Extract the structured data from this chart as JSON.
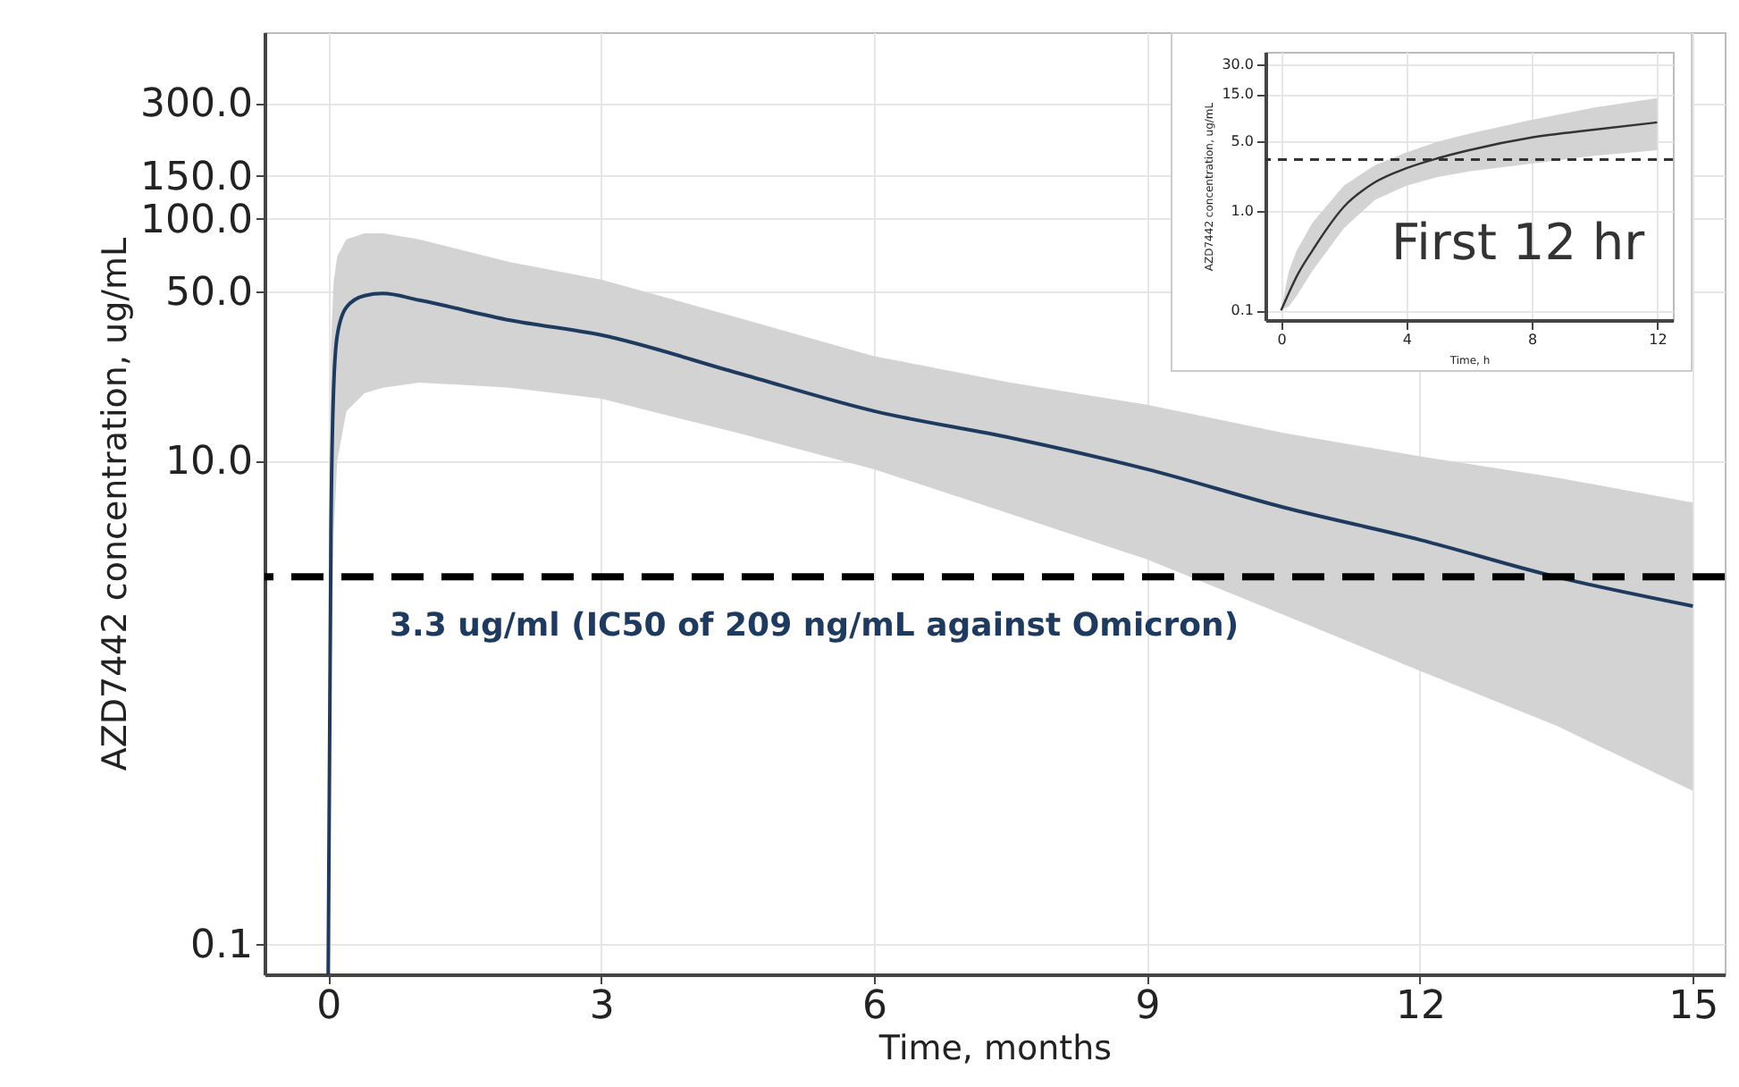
{
  "chart_data": [
    {
      "type": "line",
      "xlabel": "Time, months",
      "ylabel": "AZD7442 concentration, ug/mL",
      "log": "y",
      "grid": true,
      "xlim": [
        -0.7,
        15.35
      ],
      "xticks": [
        0,
        3,
        6,
        9,
        12,
        15
      ],
      "ylim": [
        0.075,
        590
      ],
      "yticks": [
        {
          "value": 0.1,
          "label": "0.1"
        },
        {
          "value": 10,
          "label": "10.0"
        },
        {
          "value": 50,
          "label": "50.0"
        },
        {
          "value": 100,
          "label": "100.0"
        },
        {
          "value": 150,
          "label": "150.0"
        },
        {
          "value": 300,
          "label": "300.0"
        }
      ],
      "x": [
        0,
        0.03,
        0.06,
        0.1,
        0.2,
        0.4,
        0.6,
        1,
        2,
        3,
        4.5,
        6,
        7.5,
        9,
        10.5,
        12,
        13.5,
        15
      ],
      "series": [
        {
          "color": "#1f3a5f",
          "values": [
            0.075,
            5,
            20,
            33,
            43,
            48,
            49,
            46,
            38,
            33,
            23,
            16,
            12.4,
            9.2,
            6.4,
            4.7,
            3.3,
            2.5
          ],
          "upper": [
            0.075,
            30,
            55,
            70,
            82,
            87,
            87,
            82,
            66,
            56,
            39,
            27,
            21,
            17,
            13,
            10.4,
            8.5,
            6.7
          ],
          "lower": [
            0.075,
            1,
            5,
            10,
            16,
            19,
            20,
            21,
            20,
            18,
            13,
            9.2,
            6,
            3.9,
            2.3,
            1.35,
            0.8,
            0.43
          ]
        }
      ],
      "ref_lines": [
        {
          "axis": "y",
          "value": 3.3,
          "label": "3.3 ug/ml (IC50 of 209 ng/mL against Omicron)",
          "color": "#000000",
          "line_style": "dashed"
        }
      ]
    },
    {
      "type": "line",
      "xlabel": "Time, h",
      "ylabel": "AZD7442 concentration, ug/mL",
      "log": "y",
      "grid": true,
      "xlim": [
        -0.5,
        12.5
      ],
      "xticks": [
        0,
        4,
        8,
        12
      ],
      "ylim": [
        0.08,
        40
      ],
      "yticks": [
        {
          "value": 0.1,
          "label": "0.1"
        },
        {
          "value": 1,
          "label": "1.0"
        },
        {
          "value": 5,
          "label": "5.0"
        },
        {
          "value": 15,
          "label": "15.0"
        },
        {
          "value": 30,
          "label": "30.0"
        }
      ],
      "x": [
        0,
        0.25,
        0.5,
        1,
        2,
        3,
        4,
        5,
        6,
        8,
        10,
        12
      ],
      "series": [
        {
          "color": "#333333",
          "values": [
            0.1,
            0.15,
            0.22,
            0.4,
            1.1,
            1.95,
            2.7,
            3.4,
            4.1,
            5.5,
            6.6,
            7.8
          ],
          "upper": [
            0.1,
            0.25,
            0.4,
            0.76,
            1.8,
            2.9,
            3.9,
            5,
            6,
            8.3,
            11,
            13.7
          ],
          "lower": [
            0.1,
            0.11,
            0.14,
            0.25,
            0.67,
            1.3,
            1.8,
            2.2,
            2.5,
            3,
            3.6,
            4.1
          ]
        }
      ],
      "ref_lines": [
        {
          "axis": "y",
          "value": 3.3,
          "color": "#333333",
          "line_style": "dashed"
        }
      ],
      "annotations": [
        "First 12 hr"
      ]
    }
  ]
}
